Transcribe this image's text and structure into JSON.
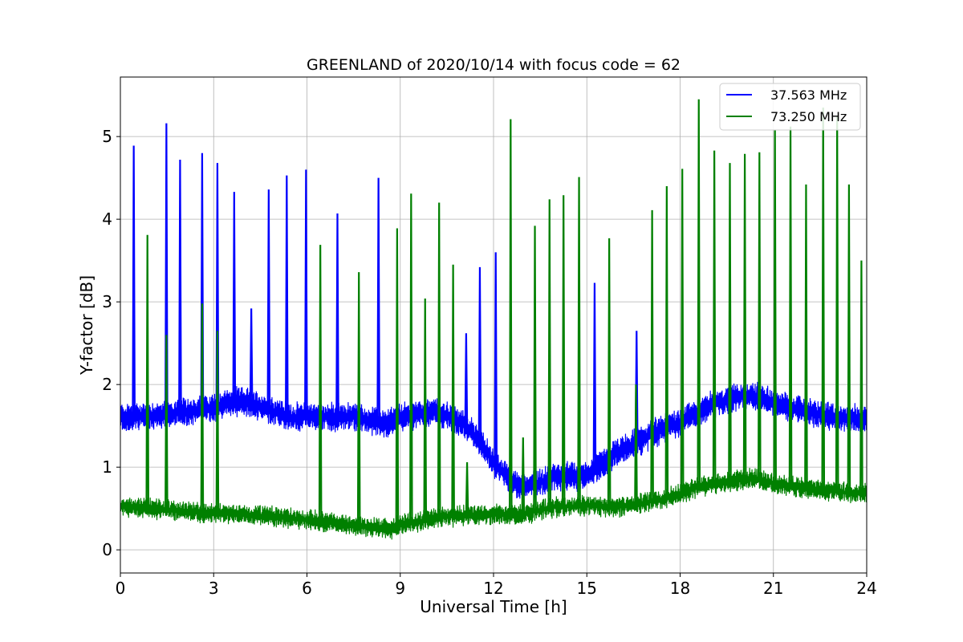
{
  "chart_data": {
    "type": "line",
    "title": "GREENLAND of 2020/10/14 with focus code = 62",
    "xlabel": "Universal Time [h]",
    "ylabel": "Y-factor [dB]",
    "xlim": [
      0,
      24
    ],
    "ylim": [
      -0.28,
      5.72
    ],
    "xticks": [
      0,
      3,
      6,
      9,
      12,
      15,
      18,
      21,
      24
    ],
    "yticks": [
      0,
      1,
      2,
      3,
      4,
      5
    ],
    "grid": true,
    "legend_position": "upper right",
    "series": [
      {
        "name": "37.563 MHz",
        "color": "#0000ff",
        "baseline": [
          [
            0,
            1.6
          ],
          [
            1,
            1.62
          ],
          [
            2,
            1.66
          ],
          [
            3,
            1.72
          ],
          [
            3.5,
            1.78
          ],
          [
            4,
            1.8
          ],
          [
            5,
            1.67
          ],
          [
            5.5,
            1.6
          ],
          [
            6,
            1.62
          ],
          [
            7,
            1.6
          ],
          [
            7.5,
            1.62
          ],
          [
            8,
            1.56
          ],
          [
            8.5,
            1.53
          ],
          [
            9,
            1.6
          ],
          [
            10,
            1.68
          ],
          [
            10.5,
            1.62
          ],
          [
            11,
            1.52
          ],
          [
            11.5,
            1.35
          ],
          [
            12,
            1.05
          ],
          [
            12.5,
            0.85
          ],
          [
            13,
            0.75
          ],
          [
            13.5,
            0.82
          ],
          [
            14,
            0.88
          ],
          [
            15,
            0.9
          ],
          [
            15.5,
            1.05
          ],
          [
            16,
            1.18
          ],
          [
            16.5,
            1.28
          ],
          [
            17,
            1.38
          ],
          [
            17.5,
            1.48
          ],
          [
            18,
            1.55
          ],
          [
            18.5,
            1.65
          ],
          [
            19,
            1.75
          ],
          [
            19.5,
            1.82
          ],
          [
            20,
            1.86
          ],
          [
            20.5,
            1.85
          ],
          [
            21,
            1.78
          ],
          [
            22,
            1.68
          ],
          [
            23,
            1.6
          ],
          [
            24,
            1.58
          ]
        ],
        "spikes": [
          [
            0.43,
            4.89
          ],
          [
            1.48,
            5.16
          ],
          [
            1.92,
            4.72
          ],
          [
            2.63,
            4.8
          ],
          [
            3.12,
            4.68
          ],
          [
            3.66,
            4.33
          ],
          [
            4.21,
            2.92
          ],
          [
            4.77,
            4.36
          ],
          [
            5.35,
            4.53
          ],
          [
            5.97,
            4.6
          ],
          [
            6.98,
            4.07
          ],
          [
            8.3,
            4.5
          ],
          [
            11.12,
            2.62
          ],
          [
            11.56,
            3.42
          ],
          [
            12.07,
            3.6
          ],
          [
            15.25,
            3.23
          ],
          [
            16.6,
            2.65
          ]
        ]
      },
      {
        "name": "73.250 MHz",
        "color": "#008000",
        "baseline": [
          [
            0,
            0.53
          ],
          [
            1,
            0.5
          ],
          [
            2,
            0.47
          ],
          [
            3,
            0.45
          ],
          [
            4,
            0.43
          ],
          [
            5,
            0.4
          ],
          [
            6,
            0.36
          ],
          [
            7,
            0.32
          ],
          [
            8,
            0.28
          ],
          [
            8.7,
            0.25
          ],
          [
            9,
            0.3
          ],
          [
            10,
            0.38
          ],
          [
            11,
            0.42
          ],
          [
            12,
            0.43
          ],
          [
            12.8,
            0.42
          ],
          [
            13.5,
            0.48
          ],
          [
            14,
            0.52
          ],
          [
            15,
            0.53
          ],
          [
            16,
            0.52
          ],
          [
            17,
            0.58
          ],
          [
            17.5,
            0.62
          ],
          [
            18,
            0.68
          ],
          [
            18.5,
            0.75
          ],
          [
            19,
            0.8
          ],
          [
            20,
            0.85
          ],
          [
            20.5,
            0.86
          ],
          [
            21,
            0.8
          ],
          [
            22,
            0.75
          ],
          [
            23,
            0.7
          ],
          [
            24,
            0.68
          ]
        ],
        "spikes": [
          [
            0.87,
            3.81
          ],
          [
            1.48,
            2.6
          ],
          [
            2.63,
            2.98
          ],
          [
            3.12,
            2.65
          ],
          [
            6.43,
            3.69
          ],
          [
            7.67,
            3.36
          ],
          [
            8.9,
            3.89
          ],
          [
            9.35,
            4.31
          ],
          [
            9.8,
            3.04
          ],
          [
            10.25,
            4.2
          ],
          [
            10.7,
            3.45
          ],
          [
            11.15,
            1.06
          ],
          [
            12.55,
            5.21
          ],
          [
            12.95,
            1.36
          ],
          [
            13.33,
            3.92
          ],
          [
            13.8,
            4.24
          ],
          [
            14.25,
            4.29
          ],
          [
            14.75,
            4.51
          ],
          [
            15.72,
            3.77
          ],
          [
            16.58,
            2.0
          ],
          [
            17.1,
            4.11
          ],
          [
            17.57,
            4.4
          ],
          [
            18.07,
            4.61
          ],
          [
            18.6,
            5.45
          ],
          [
            19.1,
            4.83
          ],
          [
            19.6,
            4.68
          ],
          [
            20.08,
            4.79
          ],
          [
            20.55,
            4.81
          ],
          [
            21.05,
            5.08
          ],
          [
            21.55,
            5.12
          ],
          [
            22.05,
            4.42
          ],
          [
            22.6,
            5.35
          ],
          [
            23.05,
            5.25
          ],
          [
            23.43,
            4.42
          ],
          [
            23.83,
            3.5
          ]
        ]
      }
    ]
  }
}
